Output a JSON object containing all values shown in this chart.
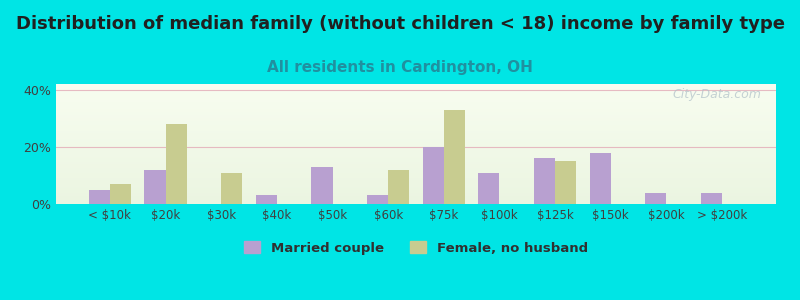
{
  "title": "Distribution of median family (without children < 18) income by family type",
  "subtitle": "All residents in Cardington, OH",
  "categories": [
    "< $10k",
    "$20k",
    "$30k",
    "$40k",
    "$50k",
    "$60k",
    "$75k",
    "$100k",
    "$125k",
    "$150k",
    "$200k",
    "> $200k"
  ],
  "married_couple": [
    5,
    12,
    0,
    3,
    13,
    3,
    20,
    11,
    16,
    18,
    4,
    4
  ],
  "female_no_husband": [
    7,
    28,
    11,
    0,
    0,
    12,
    33,
    0,
    15,
    0,
    0,
    0
  ],
  "married_color": "#b8a0d0",
  "female_color": "#c8cc90",
  "title_fontsize": 13,
  "subtitle_fontsize": 11,
  "subtitle_color": "#2090a0",
  "background_outer": "#00e5e5",
  "ylim": [
    0,
    42
  ],
  "yticks": [
    0,
    20,
    40
  ],
  "bar_width": 0.38,
  "watermark": "City-Data.com"
}
